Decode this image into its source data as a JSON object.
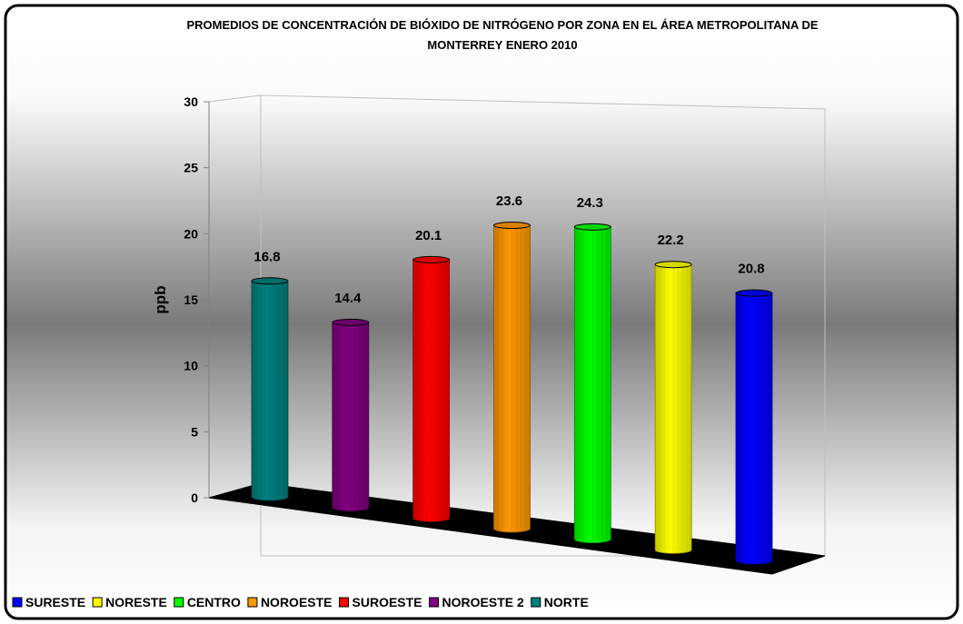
{
  "chart_data": {
    "type": "bar",
    "title_line1": "PROMEDIOS DE CONCENTRACIÓN DE BIÓXIDO DE NITRÓGENO POR ZONA EN EL ÁREA METROPOLITANA DE",
    "title_line2": "MONTERREY ENERO 2010",
    "ylabel": "ppb",
    "ylim": [
      0,
      30
    ],
    "yticks": [
      "0",
      "5",
      "10",
      "15",
      "20",
      "25",
      "30"
    ],
    "legend_position": "bottom-left",
    "series": [
      {
        "name": "NORTE",
        "value": 16.8,
        "label": "16.8",
        "color": "#008080"
      },
      {
        "name": "NOROESTE 2",
        "value": 14.4,
        "label": "14.4",
        "color": "#800080"
      },
      {
        "name": "SUROESTE",
        "value": 20.1,
        "label": "20.1",
        "color": "#ff0000"
      },
      {
        "name": "NOROESTE",
        "value": 23.6,
        "label": "23.6",
        "color": "#ff9900"
      },
      {
        "name": "CENTRO",
        "value": 24.3,
        "label": "24.3",
        "color": "#00ff00"
      },
      {
        "name": "NORESTE",
        "value": 22.2,
        "label": "22.2",
        "color": "#ffff00"
      },
      {
        "name": "SURESTE",
        "value": 20.8,
        "label": "20.8",
        "color": "#0000ff"
      }
    ],
    "legend_order": [
      "SURESTE",
      "NORESTE",
      "CENTRO",
      "NOROESTE",
      "SUROESTE",
      "NOROESTE 2",
      "NORTE"
    ]
  }
}
